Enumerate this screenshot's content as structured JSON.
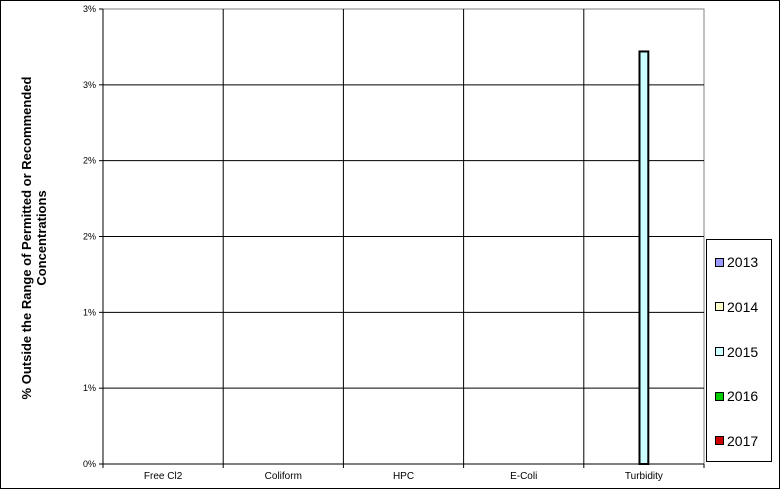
{
  "chart_data": {
    "type": "bar",
    "categories": [
      "Free Cl2",
      "Coliform",
      "HPC",
      "E-Coli",
      "Turbidity"
    ],
    "series": [
      {
        "name": "2013",
        "values": [
          0,
          0,
          0,
          0,
          0
        ],
        "color": "#9999ff"
      },
      {
        "name": "2014",
        "values": [
          0,
          0,
          0,
          0,
          0
        ],
        "color": "#ffffcc"
      },
      {
        "name": "2015",
        "values": [
          0,
          0,
          0,
          0,
          2.72
        ],
        "color": "#ccffff"
      },
      {
        "name": "2016",
        "values": [
          0,
          0,
          0,
          0,
          0
        ],
        "color": "#00cc00"
      },
      {
        "name": "2017",
        "values": [
          0,
          0,
          0,
          0,
          0
        ],
        "color": "#cc0000"
      }
    ],
    "ylabel": "% Outside the Range of Permitted or Recommended Concentrations",
    "ylabel_lines": [
      "% Outside the Range of Permitted or Recommended",
      "Concentrations"
    ],
    "ytick_labels": [
      "0%",
      "1%",
      "1%",
      "2%",
      "2%",
      "3%",
      "3%"
    ],
    "ylim": [
      0,
      3
    ],
    "grid": true,
    "legend_position": "right"
  }
}
